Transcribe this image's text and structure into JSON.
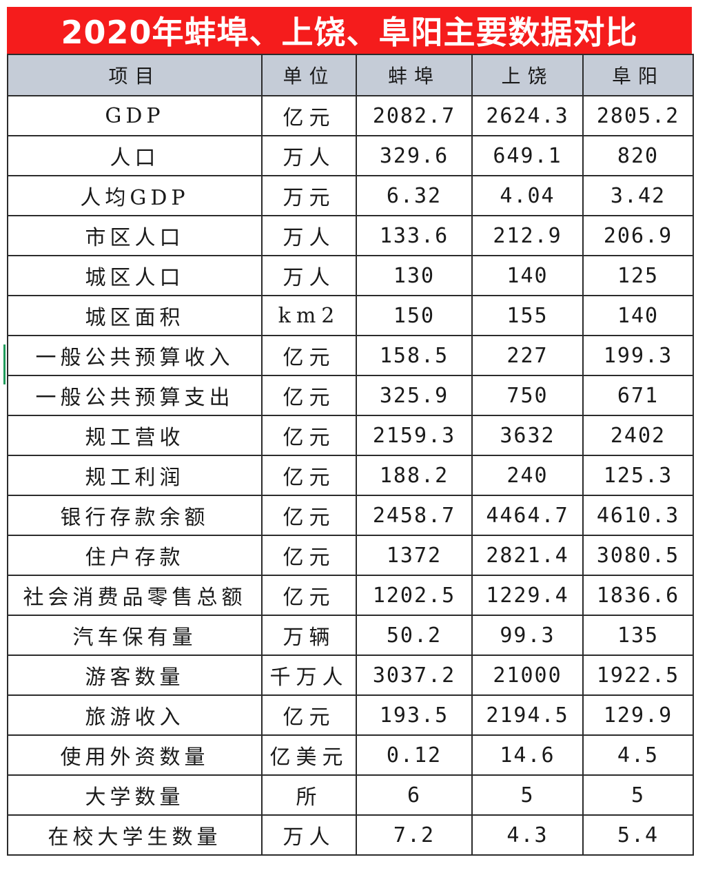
{
  "title": "2020年蚌埠、上饶、阜阳主要数据对比",
  "table": {
    "headers": [
      "项目",
      "单位",
      "蚌埠",
      "上饶",
      "阜阳"
    ],
    "rows": [
      [
        "GDP",
        "亿元",
        "2082.7",
        "2624.3",
        "2805.2"
      ],
      [
        "人口",
        "万人",
        "329.6",
        "649.1",
        "820"
      ],
      [
        "人均GDP",
        "万元",
        "6.32",
        "4.04",
        "3.42"
      ],
      [
        "市区人口",
        "万人",
        "133.6",
        "212.9",
        "206.9"
      ],
      [
        "城区人口",
        "万人",
        "130",
        "140",
        "125"
      ],
      [
        "城区面积",
        "km2",
        "150",
        "155",
        "140"
      ],
      [
        "一般公共预算收入",
        "亿元",
        "158.5",
        "227",
        "199.3"
      ],
      [
        "一般公共预算支出",
        "亿元",
        "325.9",
        "750",
        "671"
      ],
      [
        "规工营收",
        "亿元",
        "2159.3",
        "3632",
        "2402"
      ],
      [
        "规工利润",
        "亿元",
        "188.2",
        "240",
        "125.3"
      ],
      [
        "银行存款余额",
        "亿元",
        "2458.7",
        "4464.7",
        "4610.3"
      ],
      [
        "住户存款",
        "亿元",
        "1372",
        "2821.4",
        "3080.5"
      ],
      [
        "社会消费品零售总额",
        "亿元",
        "1202.5",
        "1229.4",
        "1836.6"
      ],
      [
        "汽车保有量",
        "万辆",
        "50.2",
        "99.3",
        "135"
      ],
      [
        "游客数量",
        "千万人",
        "3037.2",
        "21000",
        "1922.5"
      ],
      [
        "旅游收入",
        "亿元",
        "193.5",
        "2194.5",
        "129.9"
      ],
      [
        "使用外资数量",
        "亿美元",
        "0.12",
        "14.6",
        "4.5"
      ],
      [
        "大学数量",
        "所",
        "6",
        "5",
        "5"
      ],
      [
        "在校大学生数量",
        "万人",
        "7.2",
        "4.3",
        "5.4"
      ]
    ]
  },
  "colors": {
    "title_background": "#f51c1c",
    "title_text": "#ffffff",
    "header_background": "#c5ccd7",
    "grid_line": "#2b2b2b"
  }
}
